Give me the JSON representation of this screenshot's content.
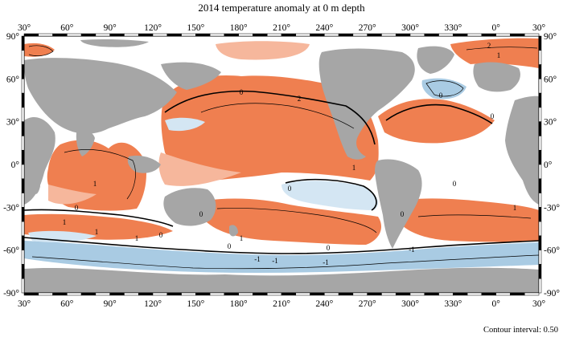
{
  "map": {
    "title": "2014 temperature anomaly at 0 m depth",
    "footnote": "Contour interval: 0.50",
    "lon_ticks": [
      "30°",
      "60°",
      "90°",
      "120°",
      "150°",
      "180°",
      "210°",
      "240°",
      "270°",
      "300°",
      "330°",
      "0°",
      "30°"
    ],
    "lat_ticks_left": [
      "90°",
      "60°",
      "30°",
      "0°",
      "-30°",
      "-60°",
      "-90°"
    ],
    "lat_ticks_right": [
      "90°",
      "60°",
      "30°",
      "0°",
      "-30°",
      "-60°",
      "-90°"
    ],
    "contour_labels": [
      "0",
      "1",
      "2",
      "-1",
      "0",
      "1",
      "-1",
      "0",
      "1",
      "2",
      "0",
      "0",
      "-1",
      "1",
      "1",
      "1",
      "-1",
      "0",
      "0",
      "1",
      "0",
      "0",
      "0",
      "1",
      "0"
    ],
    "colors": {
      "land": "#a6a6a6",
      "warm": "#ef7f50",
      "warm_light": "#f6b79c",
      "cool": "#a9cbe3",
      "cool_light": "#d4e6f3",
      "ocean_neutral": "#ffffff",
      "contour": "#000000"
    }
  }
}
